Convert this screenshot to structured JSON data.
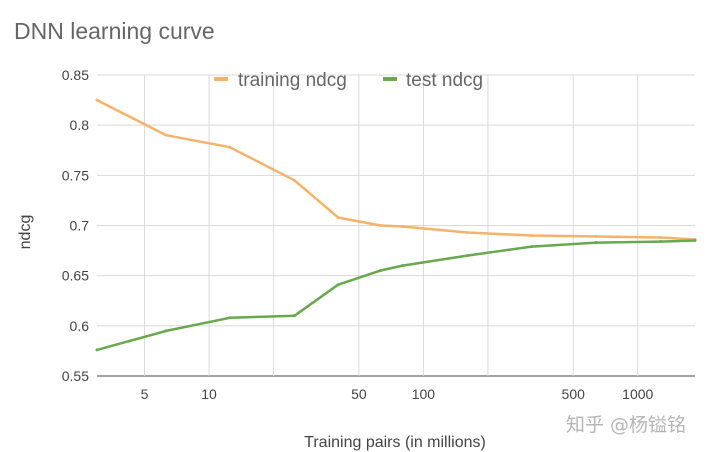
{
  "chart_data": {
    "type": "line",
    "title": "DNN learning curve",
    "xlabel": "Training pairs (in millions)",
    "ylabel": "ndcg",
    "x_scale": "log",
    "xlim": [
      3,
      1850
    ],
    "ylim": [
      0.55,
      0.85
    ],
    "x_ticks": [
      5,
      10,
      50,
      100,
      500,
      1000
    ],
    "x_tick_labels": [
      "5",
      "10",
      "50",
      "100",
      "500",
      "1000"
    ],
    "x_gridlines": [
      5,
      10,
      20,
      50,
      100,
      200,
      500,
      1000
    ],
    "y_ticks": [
      0.55,
      0.6,
      0.65,
      0.7,
      0.75,
      0.8,
      0.85
    ],
    "y_tick_labels": [
      "0.55",
      "0.6",
      "0.65",
      "0.7",
      "0.75",
      "0.8",
      "0.85"
    ],
    "grid": true,
    "legend_position": "top-center",
    "series": [
      {
        "name": "training ndcg",
        "color": "#f6b26b",
        "x": [
          3,
          6.3,
          12.5,
          25,
          40,
          63,
          80,
          160,
          320,
          640,
          1280,
          1850
        ],
        "values": [
          0.825,
          0.79,
          0.778,
          0.745,
          0.708,
          0.7,
          0.699,
          0.693,
          0.69,
          0.689,
          0.688,
          0.686
        ]
      },
      {
        "name": "test ndcg",
        "color": "#6aa84f",
        "x": [
          3,
          6.3,
          12.5,
          25,
          40,
          63,
          80,
          160,
          320,
          640,
          1280,
          1850
        ],
        "values": [
          0.576,
          0.595,
          0.608,
          0.61,
          0.641,
          0.655,
          0.66,
          0.67,
          0.679,
          0.683,
          0.684,
          0.685
        ]
      }
    ]
  },
  "watermark": "知乎 @杨镒铭"
}
